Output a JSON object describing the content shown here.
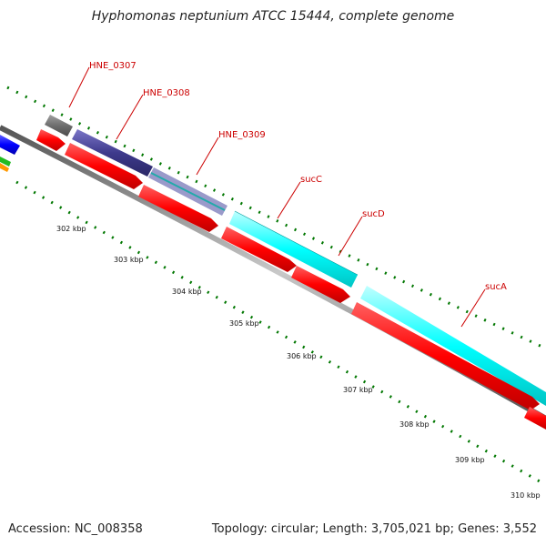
{
  "title": "Hyphomonas neptunium ATCC 15444, complete genome",
  "footer": {
    "accession": "Accession: NC_008358",
    "summary": "Topology: circular; Length: 3,705,021 bp; Genes: 3,552"
  },
  "ruler": {
    "labels": [
      "302 kbp",
      "303 kbp",
      "304 kbp",
      "305 kbp",
      "306 kbp",
      "307 kbp",
      "308 kbp",
      "309 kbp",
      "310 kbp"
    ]
  },
  "genes": {
    "labels": [
      "HNE_0307",
      "HNE_0308",
      "HNE_0309",
      "sucC",
      "sucD",
      "sucA"
    ]
  },
  "colors": {
    "cds": "#ff0000",
    "cyan": "#00ffff",
    "indigo": "#3e3a8c",
    "gray": "#6e6e6e",
    "backbone": "#888888",
    "tick": "#007700",
    "label": "#cc0000"
  }
}
